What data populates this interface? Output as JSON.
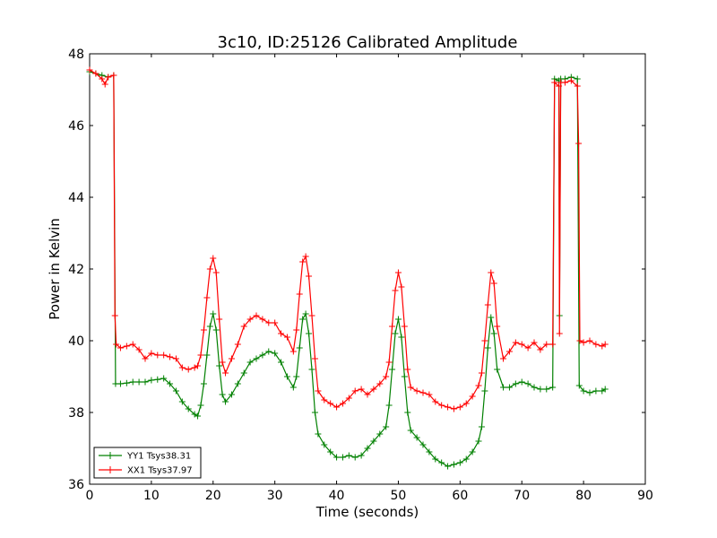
{
  "chart_data": {
    "type": "line",
    "title": "3c10, ID:25126 Calibrated Amplitude",
    "xlabel": "Time (seconds)",
    "ylabel": "Power in Kelvin",
    "xlim": [
      0,
      90
    ],
    "ylim": [
      36,
      48
    ],
    "xticks": [
      "0",
      "10",
      "20",
      "30",
      "40",
      "50",
      "60",
      "70",
      "80",
      "90"
    ],
    "yticks": [
      "36",
      "38",
      "40",
      "42",
      "44",
      "46",
      "48"
    ],
    "grid": false,
    "legend_position": "lower-left",
    "marker": "plus",
    "series": [
      {
        "name": "YY1 Tsys38.31",
        "color": "#008000",
        "points": [
          [
            0,
            47.5
          ],
          [
            1,
            47.45
          ],
          [
            2,
            47.4
          ],
          [
            3,
            47.35
          ],
          [
            3.9,
            47.4
          ],
          [
            4.2,
            38.8
          ],
          [
            5,
            38.8
          ],
          [
            6,
            38.82
          ],
          [
            7,
            38.85
          ],
          [
            8,
            38.85
          ],
          [
            9,
            38.85
          ],
          [
            10,
            38.9
          ],
          [
            11,
            38.92
          ],
          [
            12,
            38.95
          ],
          [
            13,
            38.8
          ],
          [
            14,
            38.6
          ],
          [
            15,
            38.3
          ],
          [
            16,
            38.1
          ],
          [
            17,
            37.95
          ],
          [
            17.5,
            37.9
          ],
          [
            18,
            38.2
          ],
          [
            18.5,
            38.8
          ],
          [
            19,
            39.6
          ],
          [
            19.5,
            40.4
          ],
          [
            20,
            40.75
          ],
          [
            20.5,
            40.3
          ],
          [
            21,
            39.3
          ],
          [
            21.5,
            38.5
          ],
          [
            22,
            38.3
          ],
          [
            23,
            38.5
          ],
          [
            24,
            38.8
          ],
          [
            25,
            39.1
          ],
          [
            26,
            39.4
          ],
          [
            27,
            39.5
          ],
          [
            28,
            39.6
          ],
          [
            29,
            39.7
          ],
          [
            30,
            39.65
          ],
          [
            31,
            39.4
          ],
          [
            32,
            39.0
          ],
          [
            33,
            38.7
          ],
          [
            33.5,
            39.0
          ],
          [
            34,
            39.8
          ],
          [
            34.5,
            40.6
          ],
          [
            35,
            40.75
          ],
          [
            35.5,
            40.2
          ],
          [
            36,
            39.2
          ],
          [
            36.5,
            38.0
          ],
          [
            37,
            37.4
          ],
          [
            38,
            37.1
          ],
          [
            39,
            36.9
          ],
          [
            40,
            36.75
          ],
          [
            41,
            36.75
          ],
          [
            42,
            36.8
          ],
          [
            43,
            36.75
          ],
          [
            44,
            36.8
          ],
          [
            45,
            37.0
          ],
          [
            46,
            37.2
          ],
          [
            47,
            37.4
          ],
          [
            48,
            37.6
          ],
          [
            48.5,
            38.2
          ],
          [
            49,
            39.2
          ],
          [
            49.5,
            40.2
          ],
          [
            50,
            40.6
          ],
          [
            50.5,
            40.1
          ],
          [
            51,
            39.0
          ],
          [
            51.5,
            38.0
          ],
          [
            52,
            37.5
          ],
          [
            53,
            37.3
          ],
          [
            54,
            37.1
          ],
          [
            55,
            36.9
          ],
          [
            56,
            36.7
          ],
          [
            57,
            36.6
          ],
          [
            58,
            36.5
          ],
          [
            59,
            36.55
          ],
          [
            60,
            36.6
          ],
          [
            61,
            36.7
          ],
          [
            62,
            36.9
          ],
          [
            63,
            37.2
          ],
          [
            63.5,
            37.6
          ],
          [
            64,
            38.6
          ],
          [
            64.5,
            39.8
          ],
          [
            65,
            40.65
          ],
          [
            65.5,
            40.2
          ],
          [
            66,
            39.2
          ],
          [
            67,
            38.7
          ],
          [
            68,
            38.7
          ],
          [
            69,
            38.8
          ],
          [
            70,
            38.85
          ],
          [
            71,
            38.8
          ],
          [
            72,
            38.7
          ],
          [
            73,
            38.65
          ],
          [
            74,
            38.65
          ],
          [
            75,
            38.7
          ],
          [
            75.3,
            47.3
          ],
          [
            76,
            47.25
          ],
          [
            76.1,
            40.7
          ],
          [
            76.3,
            47.3
          ],
          [
            77,
            47.3
          ],
          [
            78,
            47.35
          ],
          [
            79,
            47.3
          ],
          [
            79.3,
            38.75
          ],
          [
            80,
            38.6
          ],
          [
            81,
            38.55
          ],
          [
            82,
            38.6
          ],
          [
            83,
            38.6
          ],
          [
            83.5,
            38.65
          ]
        ]
      },
      {
        "name": "XX1 Tsys37.97",
        "color": "#ff0000",
        "points": [
          [
            0,
            47.55
          ],
          [
            1,
            47.45
          ],
          [
            2,
            47.3
          ],
          [
            2.5,
            47.15
          ],
          [
            3,
            47.35
          ],
          [
            3.9,
            47.4
          ],
          [
            4.1,
            40.7
          ],
          [
            4.3,
            39.9
          ],
          [
            5,
            39.8
          ],
          [
            6,
            39.85
          ],
          [
            7,
            39.9
          ],
          [
            8,
            39.75
          ],
          [
            9,
            39.5
          ],
          [
            10,
            39.65
          ],
          [
            11,
            39.6
          ],
          [
            12,
            39.6
          ],
          [
            13,
            39.55
          ],
          [
            14,
            39.5
          ],
          [
            15,
            39.25
          ],
          [
            16,
            39.2
          ],
          [
            17,
            39.25
          ],
          [
            17.5,
            39.3
          ],
          [
            18,
            39.6
          ],
          [
            18.5,
            40.3
          ],
          [
            19,
            41.2
          ],
          [
            19.5,
            42.0
          ],
          [
            20,
            42.3
          ],
          [
            20.5,
            41.9
          ],
          [
            21,
            40.6
          ],
          [
            21.5,
            39.4
          ],
          [
            22,
            39.1
          ],
          [
            23,
            39.5
          ],
          [
            24,
            39.9
          ],
          [
            25,
            40.4
          ],
          [
            26,
            40.6
          ],
          [
            27,
            40.7
          ],
          [
            28,
            40.6
          ],
          [
            29,
            40.5
          ],
          [
            30,
            40.5
          ],
          [
            31,
            40.2
          ],
          [
            32,
            40.1
          ],
          [
            33,
            39.7
          ],
          [
            33.5,
            40.3
          ],
          [
            34,
            41.3
          ],
          [
            34.5,
            42.2
          ],
          [
            35,
            42.35
          ],
          [
            35.5,
            41.8
          ],
          [
            36,
            40.7
          ],
          [
            36.5,
            39.5
          ],
          [
            37,
            38.6
          ],
          [
            38,
            38.35
          ],
          [
            39,
            38.25
          ],
          [
            40,
            38.15
          ],
          [
            41,
            38.25
          ],
          [
            42,
            38.4
          ],
          [
            43,
            38.6
          ],
          [
            44,
            38.65
          ],
          [
            45,
            38.5
          ],
          [
            46,
            38.65
          ],
          [
            47,
            38.8
          ],
          [
            48,
            39.0
          ],
          [
            48.5,
            39.4
          ],
          [
            49,
            40.4
          ],
          [
            49.5,
            41.4
          ],
          [
            50,
            41.9
          ],
          [
            50.5,
            41.5
          ],
          [
            51,
            40.4
          ],
          [
            51.5,
            39.2
          ],
          [
            52,
            38.7
          ],
          [
            53,
            38.6
          ],
          [
            54,
            38.55
          ],
          [
            55,
            38.5
          ],
          [
            56,
            38.3
          ],
          [
            57,
            38.2
          ],
          [
            58,
            38.15
          ],
          [
            59,
            38.1
          ],
          [
            60,
            38.15
          ],
          [
            61,
            38.25
          ],
          [
            62,
            38.45
          ],
          [
            63,
            38.75
          ],
          [
            63.5,
            39.1
          ],
          [
            64,
            40.0
          ],
          [
            64.5,
            41.0
          ],
          [
            65,
            41.9
          ],
          [
            65.5,
            41.6
          ],
          [
            66,
            40.4
          ],
          [
            67,
            39.5
          ],
          [
            68,
            39.7
          ],
          [
            69,
            39.95
          ],
          [
            70,
            39.9
          ],
          [
            71,
            39.8
          ],
          [
            72,
            39.95
          ],
          [
            73,
            39.75
          ],
          [
            74,
            39.9
          ],
          [
            75,
            39.9
          ],
          [
            75.3,
            47.2
          ],
          [
            76,
            47.1
          ],
          [
            76.1,
            40.2
          ],
          [
            76.3,
            47.2
          ],
          [
            77,
            47.2
          ],
          [
            78,
            47.25
          ],
          [
            79,
            47.1
          ],
          [
            79.2,
            45.5
          ],
          [
            79.4,
            40.0
          ],
          [
            80,
            39.95
          ],
          [
            81,
            40.0
          ],
          [
            82,
            39.9
          ],
          [
            83,
            39.85
          ],
          [
            83.5,
            39.9
          ]
        ]
      }
    ]
  }
}
